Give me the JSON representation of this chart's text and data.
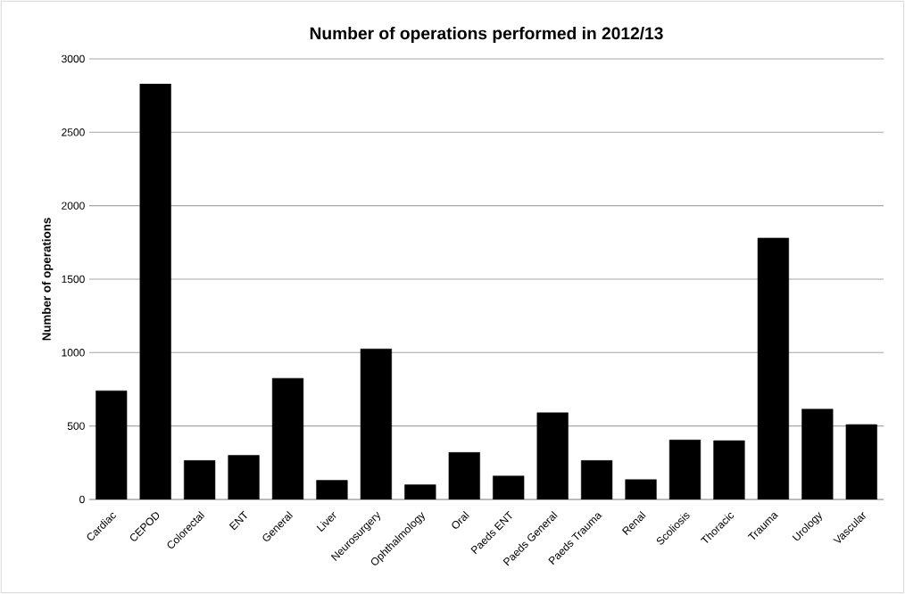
{
  "chart_data": {
    "type": "bar",
    "title": "Number of operations performed in 2012/13",
    "ylabel": "Number of operations",
    "categories": [
      "Cardiac",
      "CEPOD",
      "Colorectal",
      "ENT",
      "General",
      "Liver",
      "Neurosurgery",
      "Ophthalmology",
      "Oral",
      "Paeds ENT",
      "Paeds General",
      "Paeds Trauma",
      "Renal",
      "Scoliosis",
      "Thoracic",
      "Trauma",
      "Urology",
      "Vascular"
    ],
    "values": [
      740,
      2830,
      265,
      300,
      825,
      130,
      1025,
      100,
      320,
      160,
      590,
      265,
      135,
      405,
      400,
      1780,
      615,
      510
    ],
    "color": "#000000",
    "ylim": [
      0,
      3000
    ],
    "yticks": [
      0,
      500,
      1000,
      1500,
      2000,
      2500,
      3000
    ],
    "grid": "y"
  }
}
